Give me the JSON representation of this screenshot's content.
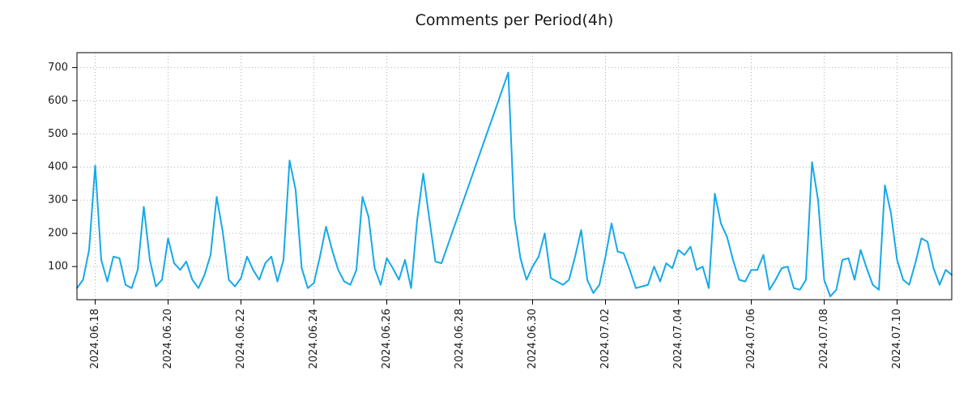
{
  "chart_data": {
    "type": "line",
    "title": "Comments per Period(4h)",
    "xlabel": "",
    "ylabel": "",
    "legend": "none",
    "grid": true,
    "x_start": "2024-06-17T12:00:00",
    "interval_hours": 4,
    "ylim": [
      0,
      745
    ],
    "yticks": [
      100,
      200,
      300,
      400,
      500,
      600,
      700
    ],
    "xticks": [
      "2024.06.18",
      "2024.06.20",
      "2024.06.22",
      "2024.06.24",
      "2024.06.26",
      "2024.06.28",
      "2024.06.30",
      "2024.07.02",
      "2024.07.04",
      "2024.07.06",
      "2024.07.08",
      "2024.07.10"
    ],
    "values": [
      35,
      60,
      150,
      405,
      120,
      55,
      130,
      125,
      45,
      35,
      90,
      280,
      120,
      40,
      60,
      185,
      110,
      90,
      115,
      60,
      35,
      75,
      135,
      310,
      205,
      60,
      40,
      65,
      130,
      90,
      60,
      110,
      130,
      55,
      120,
      420,
      330,
      95,
      35,
      50,
      130,
      220,
      150,
      90,
      55,
      45,
      90,
      310,
      250,
      95,
      45,
      125,
      95,
      60,
      120,
      35,
      240,
      380,
      245,
      115,
      110,
      162,
      215,
      267,
      319,
      371,
      424,
      476,
      528,
      580,
      633,
      685,
      250,
      125,
      60,
      100,
      130,
      200,
      65,
      55,
      45,
      60,
      130,
      210,
      60,
      20,
      45,
      130,
      230,
      145,
      140,
      90,
      35,
      40,
      45,
      100,
      55,
      110,
      95,
      150,
      135,
      160,
      90,
      100,
      35,
      320,
      230,
      190,
      120,
      60,
      55,
      90,
      90,
      135,
      30,
      60,
      95,
      100,
      35,
      30,
      60,
      415,
      300,
      60,
      10,
      30,
      120,
      125,
      60,
      150,
      95,
      45,
      30,
      345,
      260,
      120,
      60,
      45,
      110,
      185,
      175,
      95,
      45,
      90,
      75
    ],
    "colors": {
      "line": "#15a9e8",
      "grid": "#b0b0b0",
      "axis": "#000000",
      "text": "#1a1a1a"
    }
  }
}
